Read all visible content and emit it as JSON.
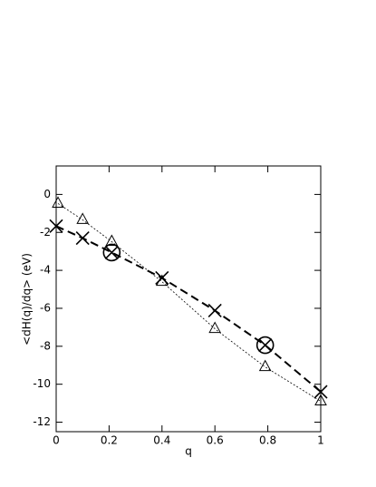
{
  "chart_data": {
    "type": "line",
    "x_label": "q",
    "y_label": "<dH(q)/dq> (eV)",
    "xlim": [
      0,
      1
    ],
    "ylim": [
      -12.5,
      1.5
    ],
    "xticks": [
      0,
      0.2,
      0.4,
      0.6,
      0.8,
      1
    ],
    "yticks": [
      0,
      -2,
      -4,
      -6,
      -8,
      -10,
      -12
    ],
    "series": [
      {
        "color": "#000000",
        "marker": "triangle",
        "line": "dotted",
        "x": [
          0.007,
          0.1,
          0.21,
          0.4,
          0.6,
          0.79,
          1.0
        ],
        "values": [
          -0.48,
          -1.34,
          -2.49,
          -4.6,
          -7.08,
          -9.09,
          -10.9
        ]
      },
      {
        "color": "#000000",
        "marker": "cross",
        "line": "dashed",
        "x": [
          0,
          0.1,
          0.21,
          0.4,
          0.6,
          0.79,
          1.0
        ],
        "values": [
          -1.67,
          -2.3,
          -3.06,
          -4.4,
          -6.12,
          -7.94,
          -10.4
        ]
      },
      {
        "color": "#000000",
        "marker": "circle",
        "line": "none",
        "x": [
          0.21,
          0.79
        ],
        "values": [
          -3.06,
          -7.94
        ]
      }
    ]
  }
}
